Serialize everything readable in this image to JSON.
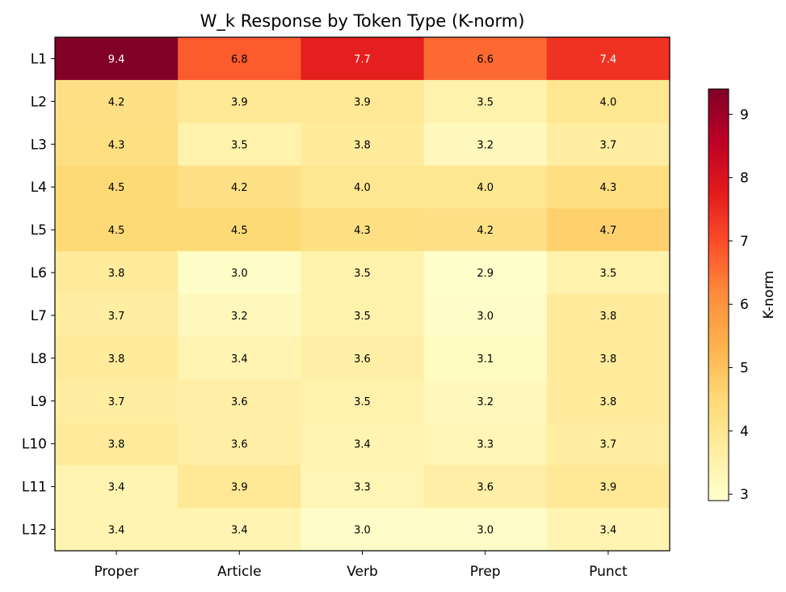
{
  "chart_data": {
    "type": "heatmap",
    "title": "W_k Response by Token Type (K-norm)",
    "xlabel": "",
    "ylabel": "",
    "x_categories": [
      "Proper",
      "Article",
      "Verb",
      "Prep",
      "Punct"
    ],
    "y_categories": [
      "L1",
      "L2",
      "L3",
      "L4",
      "L5",
      "L6",
      "L7",
      "L8",
      "L9",
      "L10",
      "L11",
      "L12"
    ],
    "values": [
      [
        9.4,
        6.8,
        7.7,
        6.6,
        7.4
      ],
      [
        4.2,
        3.9,
        3.9,
        3.5,
        4.0
      ],
      [
        4.3,
        3.5,
        3.8,
        3.2,
        3.7
      ],
      [
        4.5,
        4.2,
        4.0,
        4.0,
        4.3
      ],
      [
        4.5,
        4.5,
        4.3,
        4.2,
        4.7
      ],
      [
        3.8,
        3.0,
        3.5,
        2.9,
        3.5
      ],
      [
        3.7,
        3.2,
        3.5,
        3.0,
        3.8
      ],
      [
        3.8,
        3.4,
        3.6,
        3.1,
        3.8
      ],
      [
        3.7,
        3.6,
        3.5,
        3.2,
        3.8
      ],
      [
        3.8,
        3.6,
        3.4,
        3.3,
        3.7
      ],
      [
        3.4,
        3.9,
        3.3,
        3.6,
        3.9
      ],
      [
        3.4,
        3.4,
        3.0,
        3.0,
        3.4
      ]
    ],
    "colormap": "YlOrRd",
    "colorbar": {
      "label": "K-norm",
      "range": [
        2.9,
        9.4
      ],
      "ticks": [
        3,
        4,
        5,
        6,
        7,
        8,
        9
      ]
    },
    "annotations": "values shown in each cell"
  }
}
